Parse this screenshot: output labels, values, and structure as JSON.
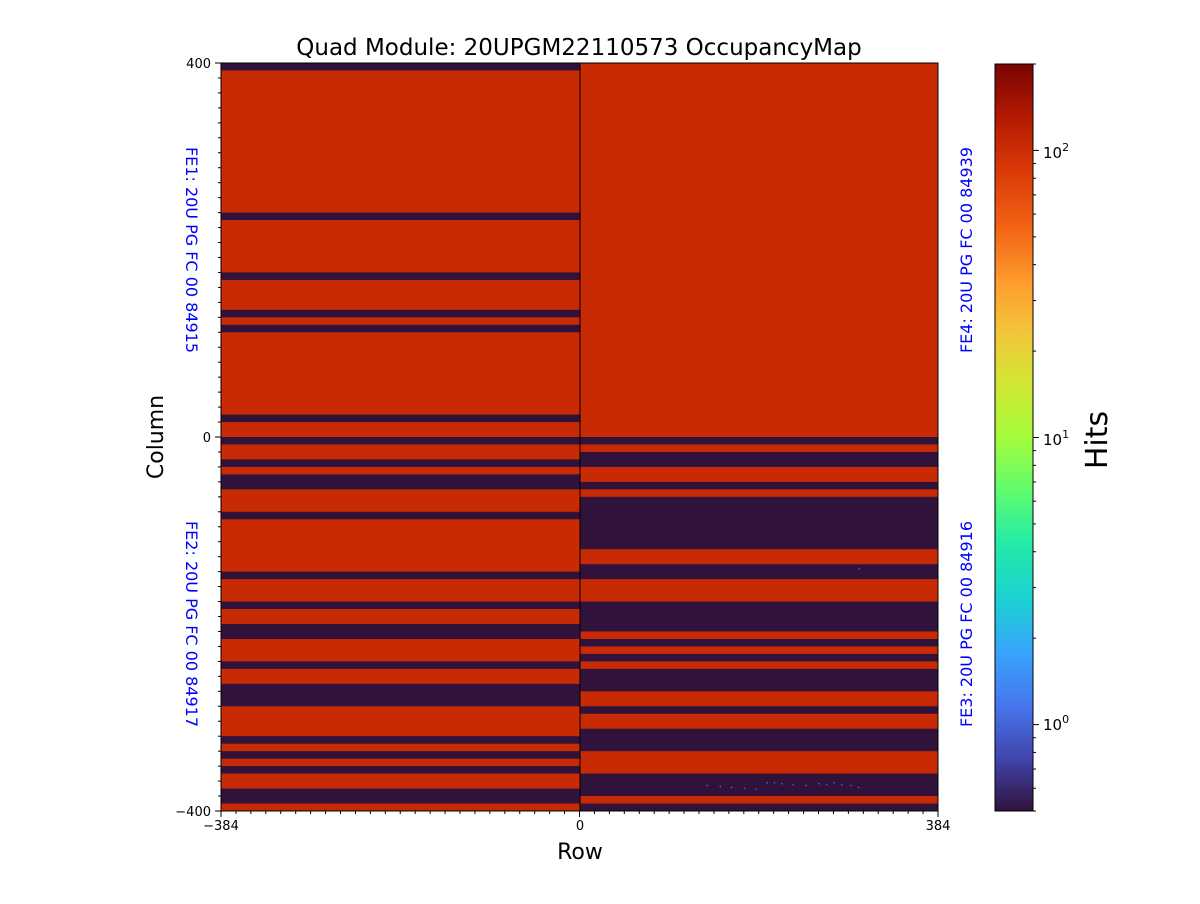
{
  "chart_data": {
    "type": "heatmap",
    "title": "Quad Module: 20UPGM22110573 OccupancyMap",
    "xlabel": "Row",
    "ylabel": "Column",
    "xlim": [
      -384,
      384
    ],
    "ylim": [
      -400,
      400
    ],
    "x_ticks": [
      "−384",
      "0",
      "384"
    ],
    "x_tick_values": [
      -384,
      0,
      384
    ],
    "y_ticks": [
      "400",
      "0",
      "−400"
    ],
    "y_tick_values": [
      400,
      0,
      -400
    ],
    "colorbar": {
      "label": "Hits",
      "scale": "log",
      "range": [
        0.5,
        200
      ],
      "ticks": [
        {
          "value": 100,
          "base": "10",
          "exp": "2"
        },
        {
          "value": 10,
          "base": "10",
          "exp": "1"
        },
        {
          "value": 1,
          "base": "10",
          "exp": "0"
        }
      ],
      "colormap": "turbo"
    },
    "colors": {
      "occupied": "#c82a03",
      "empty": "#30123b",
      "label": "#0000ff",
      "sparse": "#4a5bd8"
    },
    "chips": [
      {
        "name": "FE1",
        "label": "FE1: 20U PG FC 00 84915",
        "row_range": [
          -384,
          0
        ],
        "col_range": [
          0,
          400
        ],
        "side": "left",
        "occupancy_hits": 100,
        "empty_column_bands": [
          [
            392,
            400
          ],
          [
            232,
            240
          ],
          [
            168,
            176
          ],
          [
            128,
            136
          ],
          [
            112,
            120
          ],
          [
            16,
            24
          ]
        ]
      },
      {
        "name": "FE4",
        "label": "FE4: 20U PG FC 00 84939",
        "row_range": [
          0,
          384
        ],
        "col_range": [
          0,
          400
        ],
        "side": "right",
        "occupancy_hits": 100,
        "empty_column_bands": []
      },
      {
        "name": "FE2",
        "label": "FE2: 20U PG FC 00 84917",
        "row_range": [
          -384,
          0
        ],
        "col_range": [
          -400,
          0
        ],
        "side": "left",
        "occupancy_hits": 100,
        "empty_column_bands": [
          [
            -8,
            0
          ],
          [
            -32,
            -24
          ],
          [
            -56,
            -40
          ],
          [
            -88,
            -80
          ],
          [
            -152,
            -144
          ],
          [
            -184,
            -176
          ],
          [
            -216,
            -200
          ],
          [
            -248,
            -240
          ],
          [
            -288,
            -264
          ],
          [
            -328,
            -320
          ],
          [
            -344,
            -336
          ],
          [
            -360,
            -352
          ],
          [
            -392,
            -376
          ]
        ]
      },
      {
        "name": "FE3",
        "label": "FE3: 20U PG FC 00 84916",
        "row_range": [
          0,
          384
        ],
        "col_range": [
          -400,
          0
        ],
        "side": "right",
        "occupancy_hits": 100,
        "empty_column_bands": [
          [
            -8,
            0
          ],
          [
            -32,
            -16
          ],
          [
            -56,
            -48
          ],
          [
            -120,
            -64
          ],
          [
            -152,
            -136
          ],
          [
            -208,
            -176
          ],
          [
            -224,
            -216
          ],
          [
            -240,
            -232
          ],
          [
            -272,
            -248
          ],
          [
            -296,
            -288
          ],
          [
            -336,
            -312
          ],
          [
            -384,
            -360
          ],
          [
            -400,
            -392
          ]
        ]
      }
    ],
    "sparse_hits": [
      {
        "row": 136,
        "col": -372,
        "hits": 1
      },
      {
        "row": 150,
        "col": -373,
        "hits": 1
      },
      {
        "row": 162,
        "col": -374,
        "hits": 1
      },
      {
        "row": 176,
        "col": -375,
        "hits": 1
      },
      {
        "row": 188,
        "col": -376,
        "hits": 1
      },
      {
        "row": 200,
        "col": -369,
        "hits": 1
      },
      {
        "row": 208,
        "col": -369,
        "hits": 1
      },
      {
        "row": 216,
        "col": -370,
        "hits": 1
      },
      {
        "row": 228,
        "col": -371,
        "hits": 1
      },
      {
        "row": 242,
        "col": -372,
        "hits": 1
      },
      {
        "row": 256,
        "col": -370,
        "hits": 1
      },
      {
        "row": 264,
        "col": -371,
        "hits": 1
      },
      {
        "row": 272,
        "col": -369,
        "hits": 1
      },
      {
        "row": 280,
        "col": -371,
        "hits": 1
      },
      {
        "row": 290,
        "col": -372,
        "hits": 1
      },
      {
        "row": 298,
        "col": -374,
        "hits": 1
      },
      {
        "row": 299,
        "col": -140,
        "hits": 1
      }
    ]
  }
}
